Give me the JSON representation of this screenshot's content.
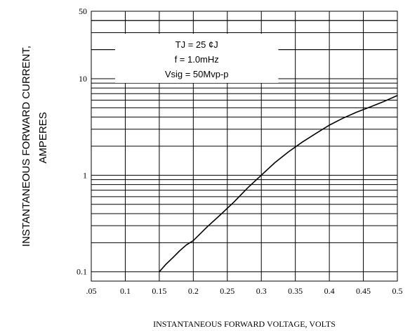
{
  "chart_data": {
    "type": "line",
    "ylabel_lines": [
      "INSTANTANEOUS FORWARD CURRENT,",
      "AMPERES"
    ],
    "xlabel": "INSTANTANEOUS FORWARD VOLTAGE, VOLTS",
    "x_scale": "linear",
    "y_scale": "log",
    "xlim": [
      0.05,
      0.5
    ],
    "ylim": [
      0.08,
      50
    ],
    "x_ticks": [
      {
        "value": 0.05,
        "label": ".05"
      },
      {
        "value": 0.1,
        "label": "0.1"
      },
      {
        "value": 0.15,
        "label": "0.15"
      },
      {
        "value": 0.2,
        "label": "0.2"
      },
      {
        "value": 0.25,
        "label": "0.25"
      },
      {
        "value": 0.3,
        "label": "0.3"
      },
      {
        "value": 0.35,
        "label": "0.35"
      },
      {
        "value": 0.4,
        "label": "0.4"
      },
      {
        "value": 0.45,
        "label": "0.45"
      },
      {
        "value": 0.5,
        "label": "0.5"
      }
    ],
    "y_ticks": [
      {
        "value": 0.1,
        "label": "0.1"
      },
      {
        "value": 1,
        "label": "1"
      },
      {
        "value": 10,
        "label": "10"
      },
      {
        "value": 50,
        "label": "50"
      }
    ],
    "grid": true,
    "annotation_lines": [
      "TJ = 25 ¢J",
      "f = 1.0mHz",
      "Vsig = 50Mvp-p"
    ],
    "series": [
      {
        "x": [
          0.15,
          0.16,
          0.17,
          0.18,
          0.19,
          0.2,
          0.22,
          0.24,
          0.26,
          0.28,
          0.3,
          0.32,
          0.34,
          0.36,
          0.38,
          0.4,
          0.42,
          0.44,
          0.46,
          0.48,
          0.5
        ],
        "y": [
          0.1,
          0.12,
          0.14,
          0.165,
          0.19,
          0.21,
          0.29,
          0.39,
          0.53,
          0.74,
          1.0,
          1.35,
          1.75,
          2.2,
          2.7,
          3.3,
          3.9,
          4.5,
          5.1,
          5.8,
          6.7
        ]
      }
    ]
  }
}
